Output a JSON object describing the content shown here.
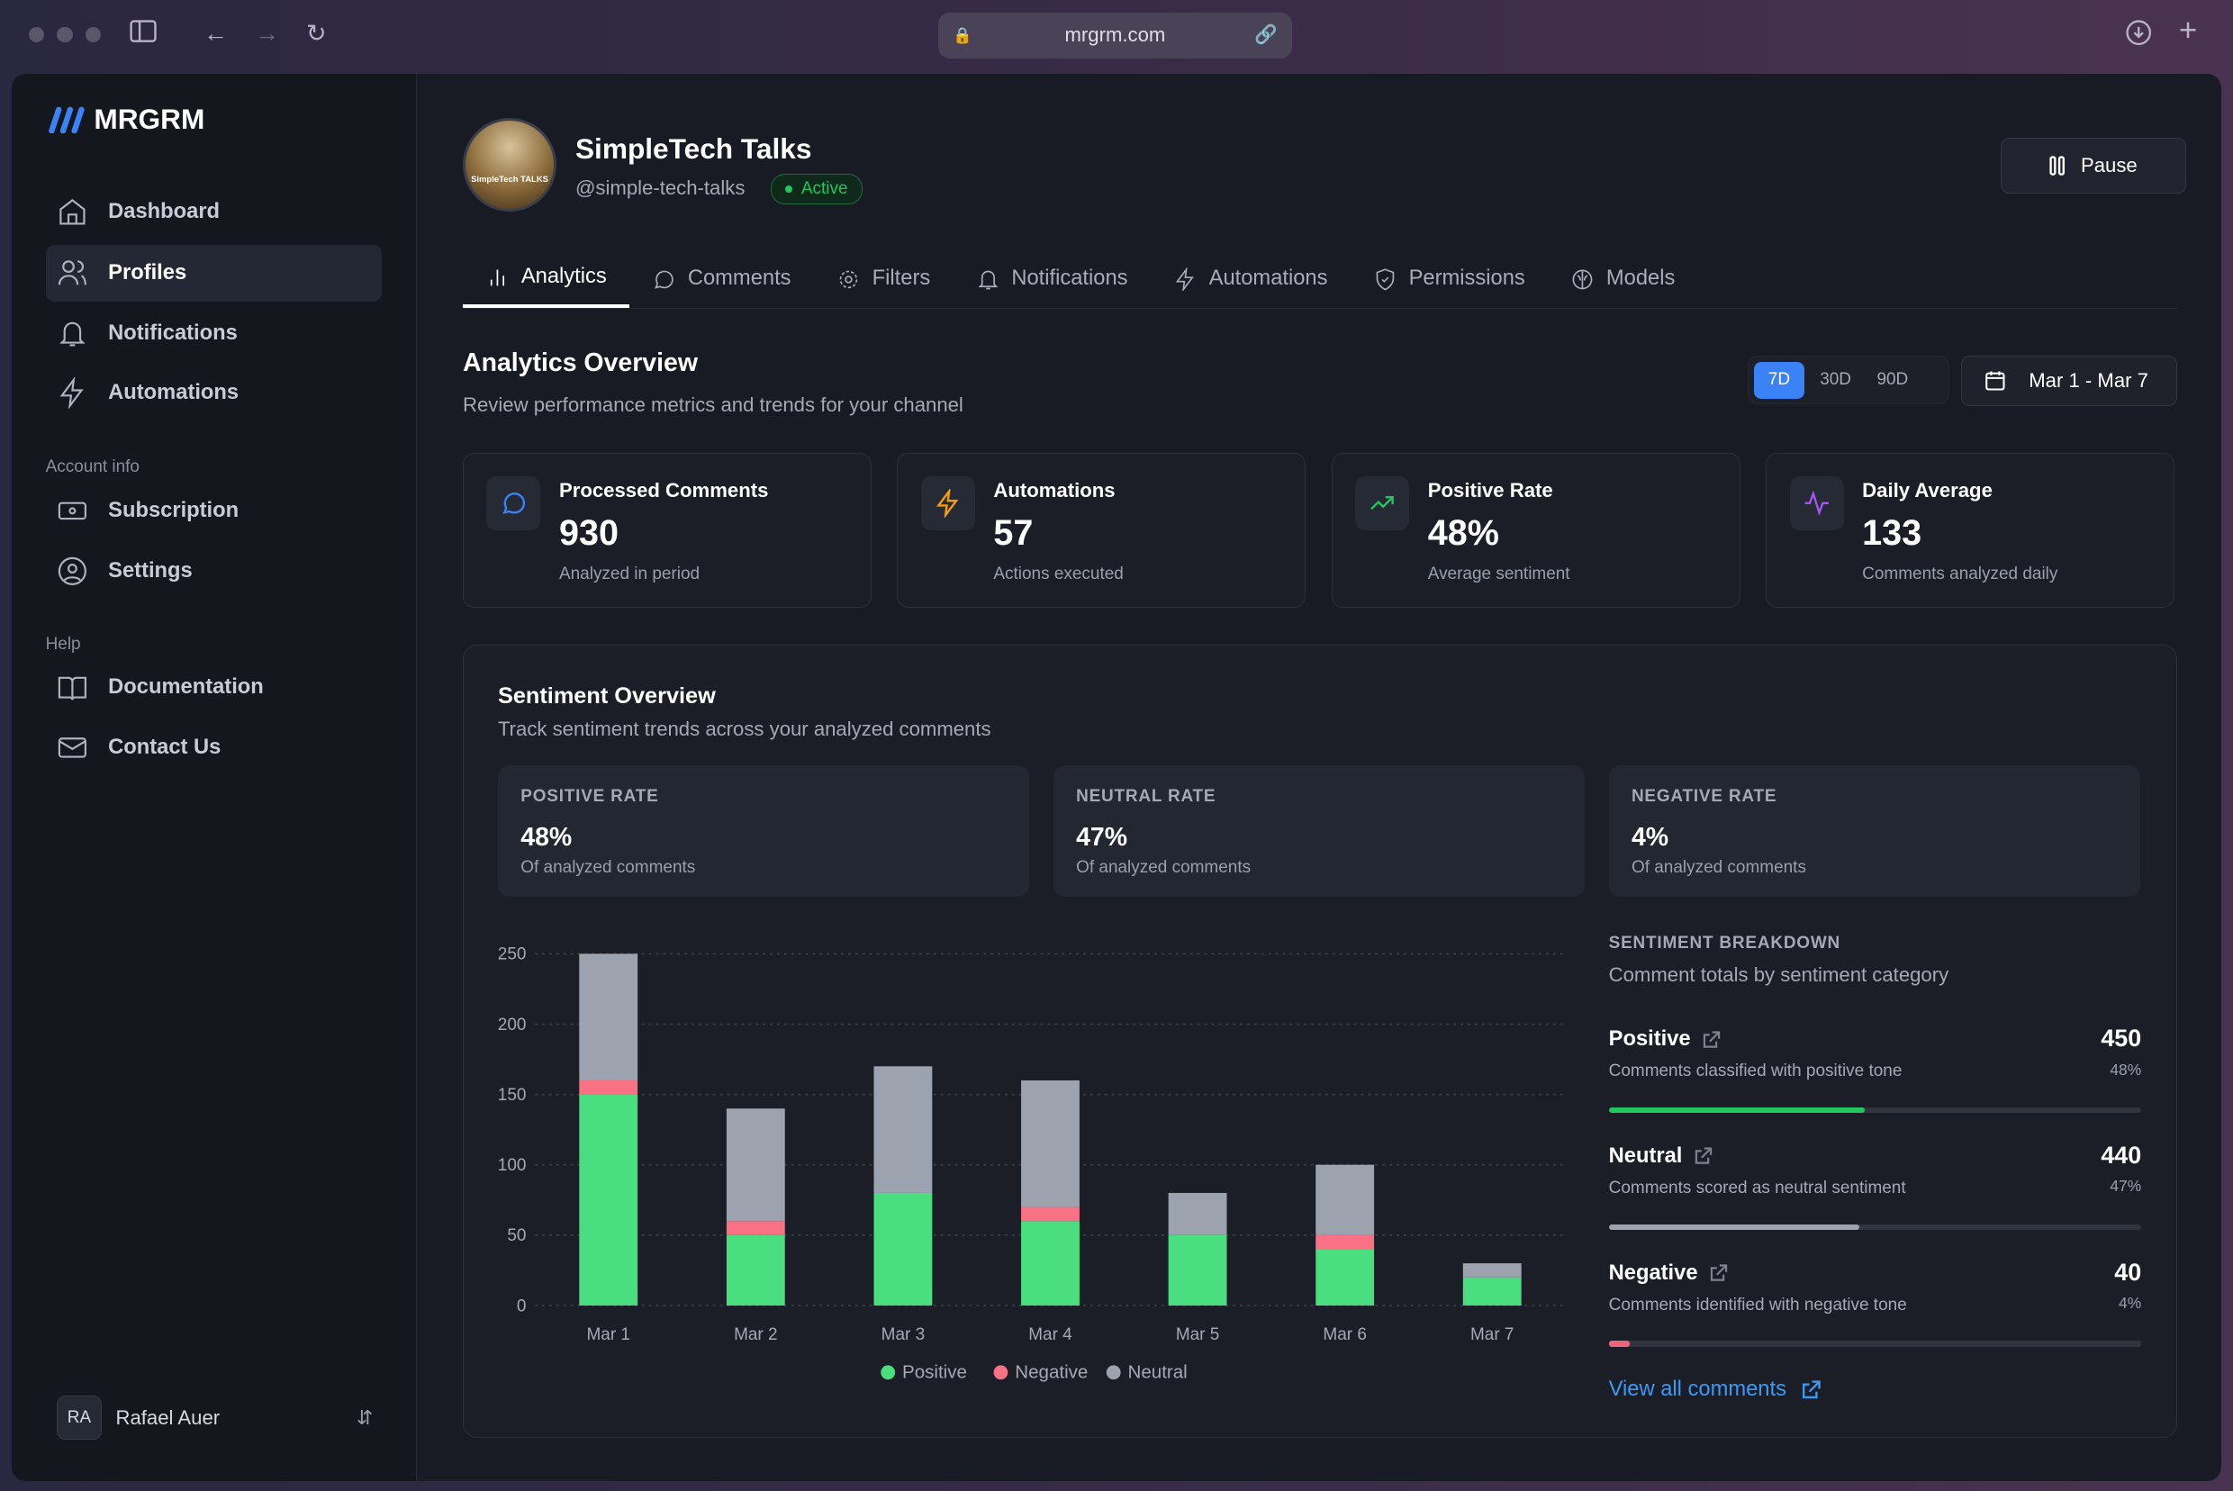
{
  "browser": {
    "url": "mrgrm.com"
  },
  "sidebar": {
    "brand": "MRGRM",
    "items": [
      {
        "label": "Dashboard"
      },
      {
        "label": "Profiles"
      },
      {
        "label": "Notifications"
      },
      {
        "label": "Automations"
      }
    ],
    "account_heading": "Account info",
    "account_items": [
      {
        "label": "Subscription"
      },
      {
        "label": "Settings"
      }
    ],
    "help_heading": "Help",
    "help_items": [
      {
        "label": "Documentation"
      },
      {
        "label": "Contact Us"
      }
    ],
    "user": {
      "initials": "RA",
      "name": "Rafael Auer"
    }
  },
  "profile": {
    "name": "SimpleTech Talks",
    "handle": "@simple-tech-talks",
    "status": "Active",
    "avatar_text": "SimpleTech TALKS",
    "pause_label": "Pause"
  },
  "tabs": [
    {
      "label": "Analytics"
    },
    {
      "label": "Comments"
    },
    {
      "label": "Filters"
    },
    {
      "label": "Notifications"
    },
    {
      "label": "Automations"
    },
    {
      "label": "Permissions"
    },
    {
      "label": "Models"
    }
  ],
  "overview": {
    "title": "Analytics Overview",
    "subtitle": "Review performance metrics and trends for your channel",
    "ranges": [
      "7D",
      "30D",
      "90D"
    ],
    "selected_range": "7D",
    "date_range": "Mar 1 - Mar 7"
  },
  "stats": [
    {
      "title": "Processed Comments",
      "value": "930",
      "sub": "Analyzed in period",
      "color": "#3b82f6"
    },
    {
      "title": "Automations",
      "value": "57",
      "sub": "Actions executed",
      "color": "#f59e0b"
    },
    {
      "title": "Positive Rate",
      "value": "48%",
      "sub": "Average sentiment",
      "color": "#22c55e"
    },
    {
      "title": "Daily Average",
      "value": "133",
      "sub": "Comments analyzed daily",
      "color": "#a855f7"
    }
  ],
  "sentiment": {
    "title": "Sentiment Overview",
    "subtitle": "Track sentiment trends across your analyzed comments",
    "rates": [
      {
        "label": "POSITIVE RATE",
        "value": "48%",
        "sub": "Of analyzed comments"
      },
      {
        "label": "NEUTRAL RATE",
        "value": "47%",
        "sub": "Of analyzed comments"
      },
      {
        "label": "NEGATIVE RATE",
        "value": "4%",
        "sub": "Of analyzed comments"
      }
    ],
    "breakdown_heading": "SENTIMENT BREAKDOWN",
    "breakdown_sub": "Comment totals by sentiment category",
    "breakdown": [
      {
        "name": "Positive",
        "desc": "Comments classified with positive tone",
        "count": "450",
        "pct": "48%",
        "fraction": 0.48,
        "color": "#22c55e"
      },
      {
        "name": "Neutral",
        "desc": "Comments scored as neutral sentiment",
        "count": "440",
        "pct": "47%",
        "fraction": 0.47,
        "color": "#9ca3af"
      },
      {
        "name": "Negative",
        "desc": "Comments identified with negative tone",
        "count": "40",
        "pct": "4%",
        "fraction": 0.04,
        "color": "#f0647a"
      }
    ],
    "view_all": "View all comments"
  },
  "chart_data": {
    "type": "bar",
    "stacked": true,
    "categories": [
      "Mar 1",
      "Mar 2",
      "Mar 3",
      "Mar 4",
      "Mar 5",
      "Mar 6",
      "Mar 7"
    ],
    "series": [
      {
        "name": "Positive",
        "color": "#4ade80",
        "values": [
          150,
          50,
          80,
          60,
          50,
          40,
          20
        ]
      },
      {
        "name": "Negative",
        "color": "#f87185",
        "values": [
          10,
          10,
          0,
          10,
          0,
          10,
          0
        ]
      },
      {
        "name": "Neutral",
        "color": "#9ca3af",
        "values": [
          90,
          80,
          90,
          90,
          30,
          50,
          10
        ]
      }
    ],
    "yticks": [
      0,
      50,
      100,
      150,
      200,
      250
    ],
    "ylim": [
      0,
      250
    ],
    "grid": true,
    "legend": "bottom"
  }
}
